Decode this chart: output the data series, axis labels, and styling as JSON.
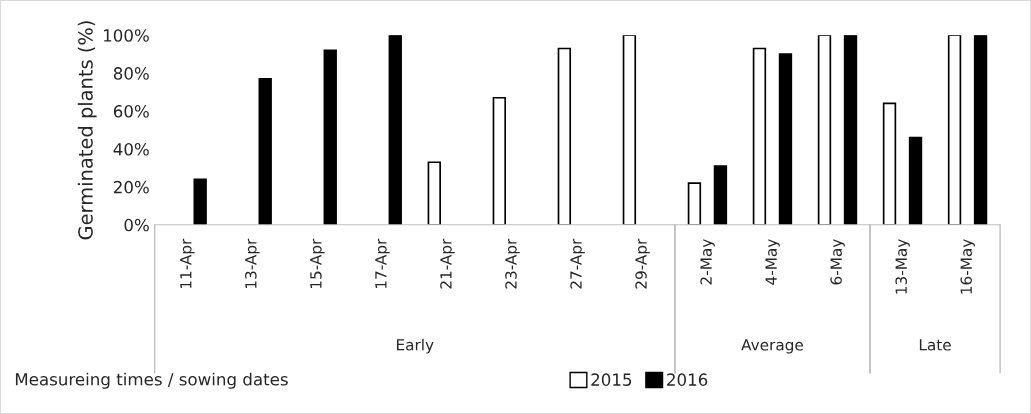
{
  "chart_data": {
    "type": "bar",
    "ylabel": "Germinated plants (%)",
    "xlabel": "Measureing times / sowing dates",
    "categories": [
      "11-Apr",
      "13-Apr",
      "15-Apr",
      "17-Apr",
      "21-Apr",
      "23-Apr",
      "27-Apr",
      "29-Apr",
      "2-May",
      "4-May",
      "6-May",
      "13-May",
      "16-May"
    ],
    "series": [
      {
        "name": "2015",
        "color": "#ffffff",
        "values": [
          null,
          null,
          null,
          null,
          33,
          67,
          93,
          100,
          22,
          93,
          100,
          64,
          100
        ]
      },
      {
        "name": "2016",
        "color": "#000000",
        "values": [
          24,
          77,
          92,
          100,
          null,
          null,
          null,
          null,
          31,
          90,
          100,
          46,
          100
        ]
      }
    ],
    "annotations": [
      "Early",
      "Average",
      "Late"
    ],
    "ylim": [
      0,
      100
    ],
    "yticks": [
      {
        "value": 0,
        "label": "0%"
      },
      {
        "value": 20,
        "label": "20%"
      },
      {
        "value": 40,
        "label": "40%"
      },
      {
        "value": 60,
        "label": "60%"
      },
      {
        "value": 80,
        "label": "80%"
      },
      {
        "value": 100,
        "label": "100%"
      }
    ],
    "grid": false,
    "legend": "bottom"
  }
}
